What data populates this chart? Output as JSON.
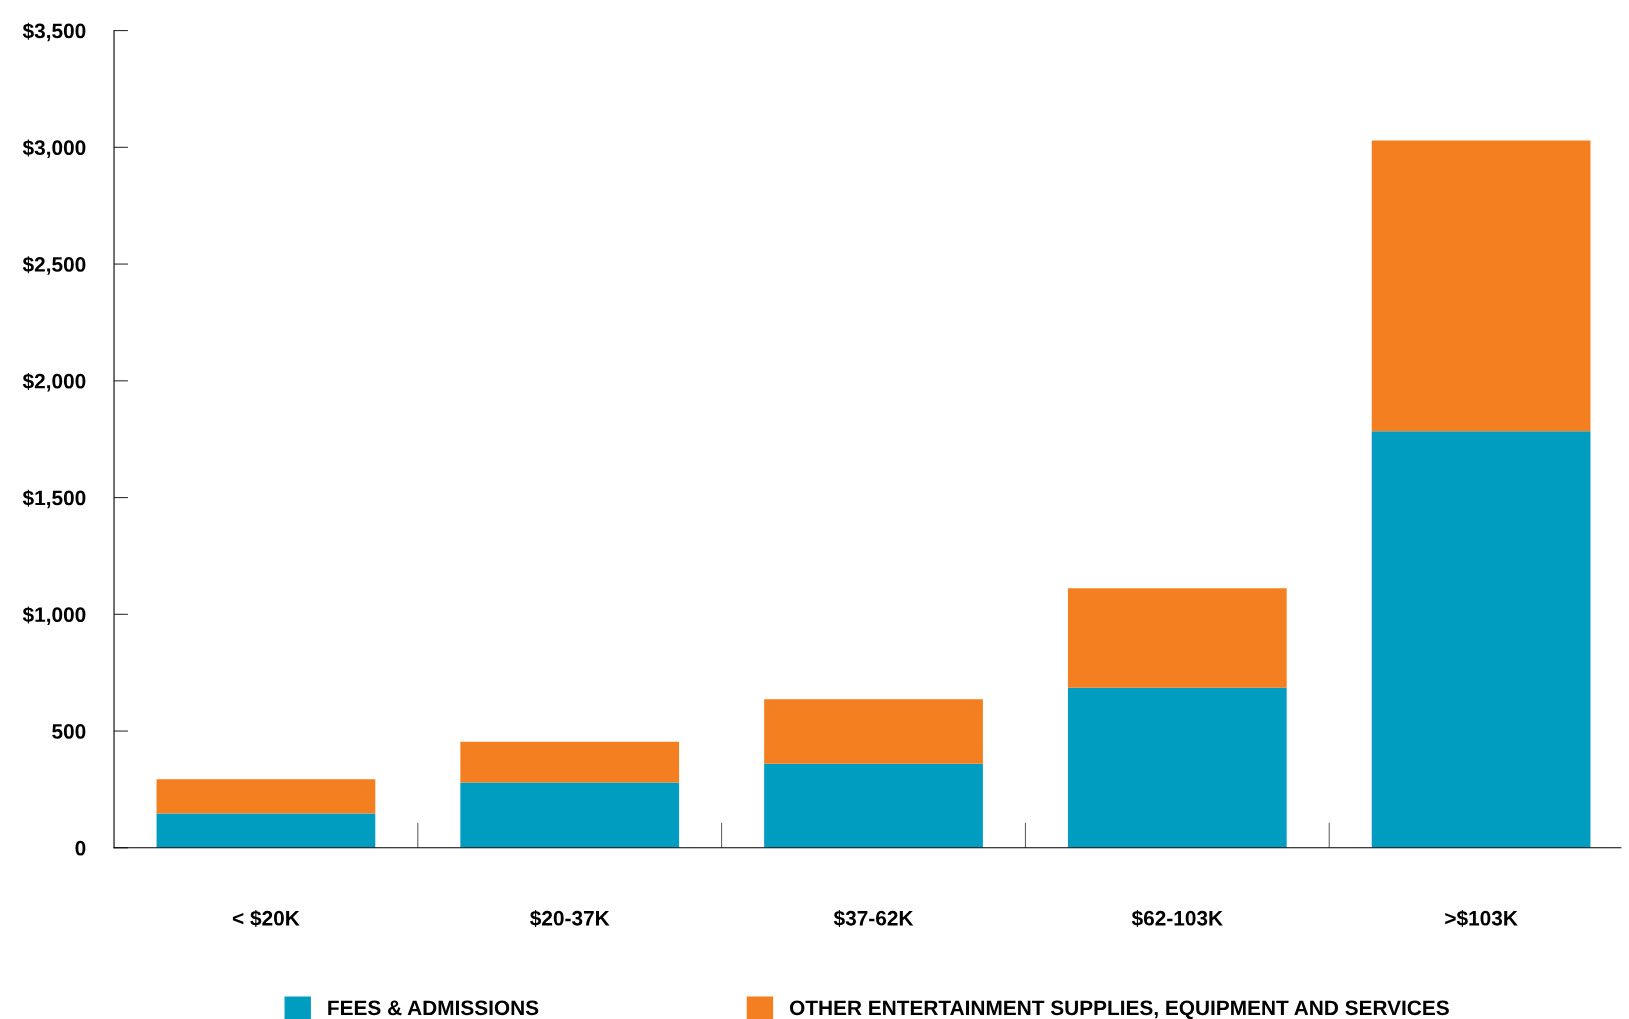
{
  "chart_data": {
    "type": "bar",
    "stacked": true,
    "categories": [
      "< $20K",
      "$20-37K",
      "$37-62K",
      "$62-103K",
      ">$103K"
    ],
    "series": [
      {
        "name": "FEES & ADMISSIONS",
        "color": "#009dc1",
        "values": [
          147,
          280,
          360,
          685,
          1784
        ]
      },
      {
        "name": "OTHER ENTERTAINMENT SUPPLIES, EQUIPMENT AND SERVICES",
        "color": "#f47f20",
        "values": [
          147,
          174,
          276,
          427,
          1245
        ]
      }
    ],
    "ylim": [
      0,
      3500
    ],
    "yticks": [
      {
        "value": 0,
        "label": "0"
      },
      {
        "value": 500,
        "label": "500"
      },
      {
        "value": 1000,
        "label": "$1,000"
      },
      {
        "value": 1500,
        "label": "$1,500"
      },
      {
        "value": 2000,
        "label": "$2,000"
      },
      {
        "value": 2500,
        "label": "$2,500"
      },
      {
        "value": 3000,
        "label": "$3,000"
      },
      {
        "value": 3500,
        "label": "$3,500"
      }
    ],
    "grid": false,
    "legend": "bottom"
  }
}
